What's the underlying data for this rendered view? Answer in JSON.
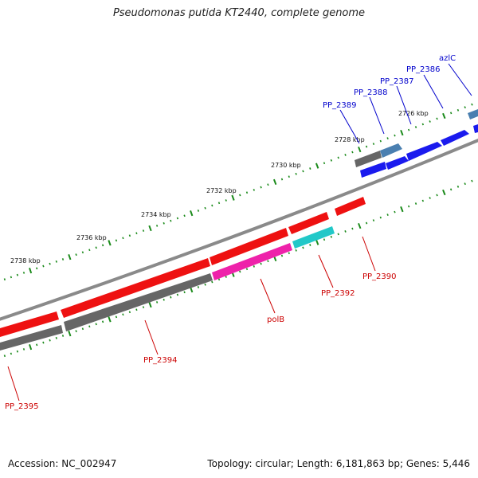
{
  "title": "Pseudomonas putida KT2440, complete genome",
  "footer": {
    "accession": "Accession: NC_002947",
    "summary": "Topology: circular; Length: 6,181,863 bp; Genes: 5,446"
  },
  "colors": {
    "backbone": "#8a8a8a",
    "tick": "#1a8a1a",
    "red": "#ee1111",
    "grey": "#666666",
    "blue": "#1a1aee",
    "steel": "#4a7fb0",
    "pink": "#ee22aa",
    "cyan": "#22c8c8",
    "label_red": "#cc0000",
    "label_blue": "#0000cc"
  },
  "scale_labels": [
    "2726 kbp",
    "2728 kbp",
    "2730 kbp",
    "2732 kbp",
    "2734 kbp",
    "2736 kbp",
    "2738 kbp"
  ],
  "gene_labels": [
    "azlC",
    "PP_2386",
    "PP_2387",
    "PP_2388",
    "PP_2389",
    "PP_2390",
    "PP_2392",
    "polB",
    "PP_2394",
    "PP_2395"
  ]
}
